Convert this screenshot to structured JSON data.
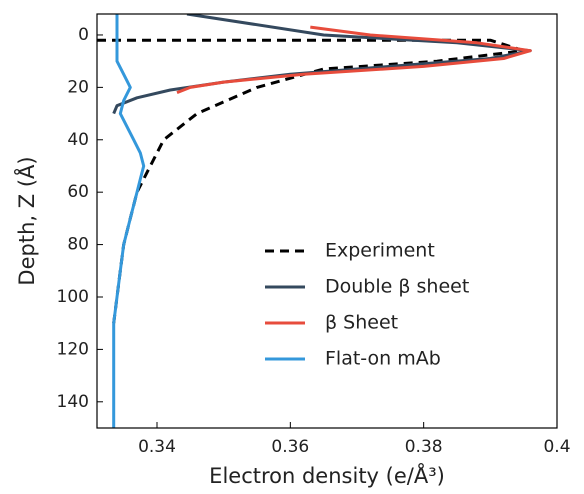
{
  "chart_data": {
    "type": "line",
    "xlabel": "Electron density (e/Å³)",
    "ylabel": "Depth, Z (Å)",
    "xlim": [
      0.331,
      0.4
    ],
    "xticks": [
      0.34,
      0.36,
      0.38,
      0.4
    ],
    "ylim": [
      -8,
      150
    ],
    "yticks": [
      0,
      20,
      40,
      60,
      80,
      100,
      120,
      140
    ],
    "y_inverted": true,
    "legend": "lower right",
    "series": [
      {
        "name": "Experiment",
        "color": "#000000",
        "dashed": true,
        "x": [
          0.331,
          0.36,
          0.39,
          0.395,
          0.382,
          0.365,
          0.355,
          0.346,
          0.341,
          0.339,
          0.337,
          0.336,
          0.335,
          0.3345,
          0.334,
          0.3335
        ],
        "y": [
          2,
          2,
          2,
          6,
          10,
          13,
          20,
          30,
          40,
          50,
          60,
          70,
          80,
          90,
          100,
          110
        ]
      },
      {
        "name": "Double β sheet",
        "color": "#34495e",
        "dashed": false,
        "x": [
          0.3445,
          0.365,
          0.385,
          0.396,
          0.39,
          0.375,
          0.36,
          0.35,
          0.342,
          0.337,
          0.334,
          0.3335
        ],
        "y": [
          -8,
          0,
          3,
          6,
          9,
          12,
          15,
          18,
          21,
          24,
          27,
          30
        ]
      },
      {
        "name": "β Sheet",
        "color": "#e74c3c",
        "dashed": false,
        "x": [
          0.363,
          0.372,
          0.388,
          0.396,
          0.392,
          0.38,
          0.362,
          0.35,
          0.345,
          0.343
        ],
        "y": [
          -3,
          0,
          3,
          6,
          9,
          12,
          15,
          18,
          20,
          22
        ]
      },
      {
        "name": "Flat-on mAb",
        "color": "#3498db",
        "dashed": false,
        "x": [
          0.334,
          0.334,
          0.334,
          0.335,
          0.336,
          0.335,
          0.3345,
          0.3355,
          0.3365,
          0.3375,
          0.338,
          0.3375,
          0.337,
          0.336,
          0.335,
          0.3345,
          0.334,
          0.3335,
          0.3335
        ],
        "y": [
          -8,
          5,
          10,
          15,
          20,
          25,
          30,
          35,
          40,
          45,
          50,
          55,
          60,
          70,
          80,
          90,
          100,
          110,
          150
        ]
      }
    ]
  }
}
